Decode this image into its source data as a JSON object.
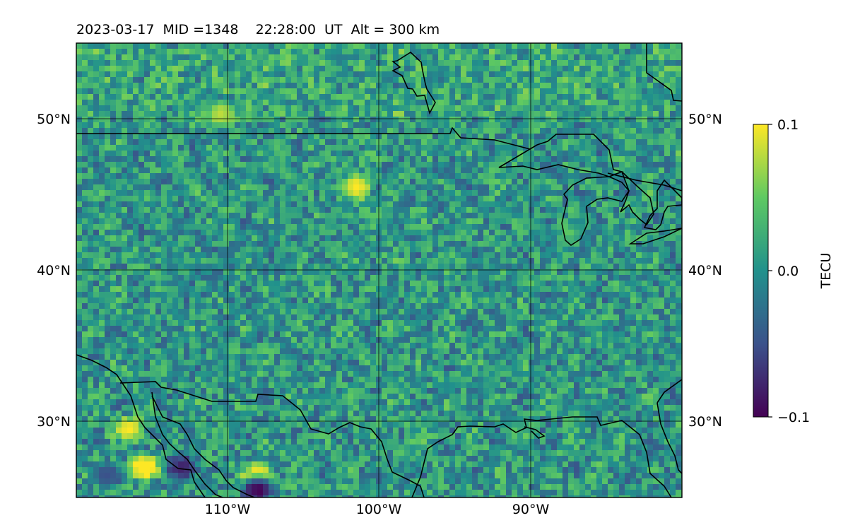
{
  "title": "2023-03-17  MID =1348    22:28:00  UT  Alt = 300 km",
  "map": {
    "lon_range": [
      -120,
      -80
    ],
    "lat_range": [
      25,
      55
    ],
    "grid_lons": [
      -110,
      -100,
      -90
    ],
    "grid_lats": [
      30,
      40,
      50
    ],
    "lon_tick_labels": [
      "110°W",
      "100°W",
      "90°W"
    ],
    "lat_tick_labels": [
      "30°N",
      "40°N",
      "50°N"
    ],
    "colormap": "viridis",
    "features": [
      "coastlines",
      "country borders",
      "Great Lakes"
    ]
  },
  "colorbar": {
    "label": "TECU",
    "ticks": [
      "0.1",
      "0.0",
      "−0.1"
    ],
    "range": [
      -0.1,
      0.1
    ],
    "colors": [
      "#440154",
      "#3b528b",
      "#21918c",
      "#5ec962",
      "#fde725"
    ]
  },
  "hotspots": [
    {
      "lon": -115.5,
      "lat": 27.0,
      "value": 0.12
    },
    {
      "lon": -116.5,
      "lat": 29.5,
      "value": 0.1
    },
    {
      "lon": -108.0,
      "lat": 26.5,
      "value": 0.1
    },
    {
      "lon": -101.5,
      "lat": 45.5,
      "value": 0.1
    },
    {
      "lon": -110.5,
      "lat": 50.3,
      "value": 0.08
    },
    {
      "lon": -108.0,
      "lat": 25.5,
      "value": -0.1
    },
    {
      "lon": -113.0,
      "lat": 27.0,
      "value": -0.08
    },
    {
      "lon": -118.0,
      "lat": 26.5,
      "value": -0.05
    }
  ]
}
